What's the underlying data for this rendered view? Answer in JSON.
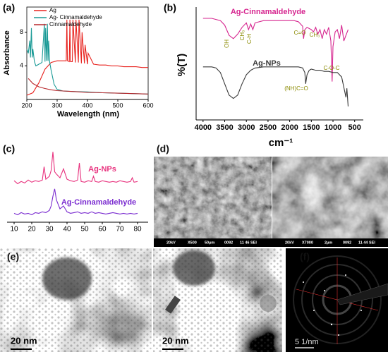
{
  "chart_data": [
    {
      "type": "line",
      "panel_label": "(a)",
      "xlabel": "Wavelength (nm)",
      "ylabel": "Absorbance",
      "xlim": [
        200,
        600
      ],
      "xticks": [
        200,
        300,
        400,
        500,
        600
      ],
      "ylim": [
        0,
        11
      ],
      "yticks": [
        4,
        8
      ],
      "legend": "upper left",
      "series": [
        {
          "name": "Ag",
          "color": "#e8231f",
          "x": [
            200,
            220,
            240,
            260,
            280,
            300,
            320,
            330,
            332,
            334,
            340,
            342,
            344,
            350,
            352,
            360,
            362,
            370,
            372,
            380,
            382,
            390,
            392,
            400,
            402,
            420,
            440,
            460,
            480,
            500,
            520,
            540,
            560,
            580,
            600
          ],
          "values": [
            0.5,
            0.8,
            2.0,
            3.6,
            4.4,
            4.6,
            4.6,
            4.6,
            9.5,
            4.6,
            4.5,
            9.5,
            4.5,
            4.5,
            9.5,
            4.4,
            9.5,
            4.4,
            9.5,
            4.3,
            8.0,
            4.3,
            6.5,
            4.2,
            5.5,
            4.2,
            4.1,
            4.1,
            4.0,
            4.0,
            3.9,
            3.9,
            3.9,
            3.8,
            3.8
          ]
        },
        {
          "name": "Ag- Cinnamaldehyde",
          "color": "#1a9a96",
          "x": [
            200,
            205,
            210,
            212,
            215,
            218,
            220,
            225,
            230,
            240,
            250,
            258,
            260,
            262,
            265,
            268,
            270,
            272,
            275,
            280,
            290,
            300,
            320,
            350,
            400,
            450,
            500,
            550,
            600
          ],
          "values": [
            6.0,
            5.5,
            7.0,
            5.0,
            8.5,
            5.0,
            6.0,
            4.5,
            4.0,
            4.2,
            4.4,
            9.0,
            4.5,
            8.5,
            4.6,
            9.0,
            4.6,
            7.0,
            4.5,
            3.5,
            1.8,
            1.2,
            1.0,
            0.95,
            0.9,
            0.8,
            0.75,
            0.7,
            0.65
          ]
        },
        {
          "name": "Cinnamaldehyde",
          "color": "#b8262b",
          "x": [
            205,
            220,
            240,
            260,
            280,
            300,
            350,
            400,
            450,
            500,
            550,
            600
          ],
          "values": [
            2.5,
            1.9,
            1.5,
            1.3,
            1.15,
            1.05,
            0.95,
            0.85,
            0.8,
            0.75,
            0.7,
            0.65
          ]
        }
      ]
    },
    {
      "type": "line",
      "panel_label": "(b)",
      "xlabel": "cm⁻¹",
      "ylabel": "%(T)",
      "xlim": [
        4160,
        300
      ],
      "xticks": [
        4000,
        3500,
        3000,
        2500,
        2000,
        1500,
        1000,
        500
      ],
      "ylim": [
        0,
        100
      ],
      "annotations": [
        "OH",
        "CH₃",
        "C-H",
        "C=O",
        "CH₃",
        "C-O-C",
        "(NH)C=O"
      ],
      "series": [
        {
          "name": "Ag-Cinnamaldehyde",
          "color": "#d6258f",
          "x": [
            4000,
            3800,
            3600,
            3500,
            3400,
            3300,
            3200,
            3100,
            3000,
            2950,
            2900,
            2850,
            2800,
            2600,
            2400,
            2200,
            2000,
            1900,
            1800,
            1750,
            1700,
            1680,
            1650,
            1600,
            1500,
            1450,
            1400,
            1350,
            1300,
            1250,
            1200,
            1150,
            1100,
            1050,
            1020,
            1000,
            950,
            900,
            850,
            800,
            750,
            700,
            650
          ],
          "values": [
            90,
            90,
            88,
            84,
            75,
            72,
            76,
            82,
            86,
            80,
            85,
            80,
            86,
            88,
            88,
            88,
            88,
            88,
            87,
            85,
            83,
            72,
            80,
            82,
            80,
            78,
            82,
            76,
            80,
            72,
            80,
            76,
            82,
            70,
            34,
            65,
            78,
            80,
            72,
            84,
            70,
            75,
            80
          ]
        },
        {
          "name": "Ag-NPs",
          "color": "#3a3a3a",
          "x": [
            4000,
            3800,
            3700,
            3600,
            3500,
            3400,
            3300,
            3200,
            3100,
            3000,
            2900,
            2800,
            2600,
            2400,
            2200,
            2000,
            1800,
            1700,
            1650,
            1630,
            1600,
            1550,
            1500,
            1400,
            1300,
            1200,
            1100,
            1000,
            900,
            800,
            700,
            680,
            650
          ],
          "values": [
            47,
            47,
            46,
            42,
            32,
            22,
            19,
            22,
            32,
            40,
            44,
            46,
            47,
            47,
            47,
            47,
            47,
            46,
            42,
            32,
            40,
            44,
            45,
            44,
            44,
            43,
            43,
            42,
            42,
            38,
            20,
            28,
            12
          ]
        }
      ]
    },
    {
      "type": "line",
      "panel_label": "(c)",
      "xlim": [
        6,
        86
      ],
      "xticks": [
        10,
        20,
        30,
        40,
        50,
        60,
        70,
        80
      ],
      "ylim": [
        0,
        100
      ],
      "series": [
        {
          "name": "Ag-NPs",
          "color": "#e8327e",
          "x": [
            10,
            12,
            14,
            16,
            18,
            20,
            22,
            24,
            26,
            27,
            28,
            29,
            30,
            31,
            32,
            33,
            34,
            36,
            38,
            40,
            42,
            44,
            46,
            47,
            48,
            50,
            52,
            54,
            55,
            56,
            58,
            60,
            62,
            64,
            66,
            68,
            70,
            72,
            74,
            76,
            77,
            78,
            80
          ],
          "values": [
            56,
            52,
            55,
            53,
            57,
            54,
            56,
            55,
            57,
            75,
            58,
            60,
            62,
            70,
            95,
            68,
            65,
            60,
            72,
            58,
            56,
            55,
            57,
            80,
            55,
            54,
            56,
            55,
            62,
            55,
            54,
            56,
            55,
            54,
            55,
            54,
            56,
            55,
            54,
            55,
            60,
            54,
            55
          ]
        },
        {
          "name": "Ag-Cinnamaldehyde",
          "color": "#7a2bd0",
          "x": [
            10,
            12,
            14,
            16,
            18,
            20,
            22,
            24,
            26,
            28,
            30,
            31,
            32,
            33,
            34,
            35,
            36,
            38,
            40,
            42,
            44,
            46,
            48,
            50,
            52,
            54,
            56,
            58,
            60,
            62,
            64,
            66,
            68,
            70,
            72,
            74,
            76,
            78,
            80
          ],
          "values": [
            12,
            10,
            13,
            11,
            12,
            10,
            13,
            12,
            14,
            13,
            16,
            22,
            35,
            45,
            30,
            24,
            18,
            22,
            14,
            12,
            13,
            14,
            12,
            13,
            12,
            14,
            12,
            13,
            12,
            11,
            12,
            13,
            12,
            11,
            12,
            11,
            12,
            11,
            12
          ]
        }
      ]
    }
  ],
  "sem": {
    "panel_label": "(d)",
    "captions": [
      [
        "20kV",
        "X500",
        "50μm",
        "0092",
        "11 46 SEI"
      ],
      [
        "20kV",
        "X7000",
        "2μm",
        "0092",
        "11 44 SEI"
      ]
    ]
  },
  "tem": {
    "panel_label": "(e)",
    "scale_bars": [
      "20 nm",
      "20 nm"
    ]
  },
  "saed": {
    "panel_label": "(f)",
    "scale_bar": "5 1/nm"
  }
}
